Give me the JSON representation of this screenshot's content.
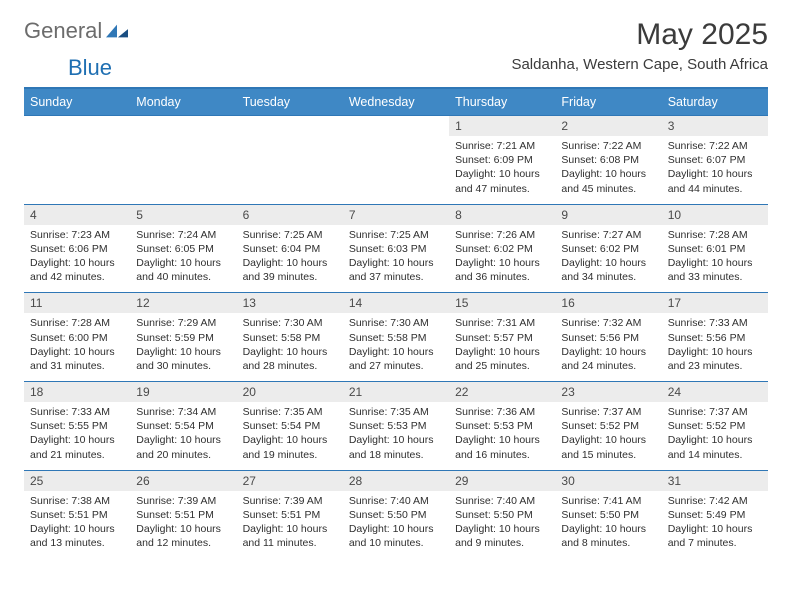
{
  "logo": {
    "text1": "General",
    "text2": "Blue"
  },
  "title": "May 2025",
  "location": "Saldanha, Western Cape, South Africa",
  "colors": {
    "header_bg": "#3f88c5",
    "header_text": "#ffffff",
    "daynum_bg": "#ececec",
    "rule": "#2f77b6",
    "logo_gray": "#6c6c6c",
    "logo_blue": "#1f6fb2"
  },
  "weekdays": [
    "Sunday",
    "Monday",
    "Tuesday",
    "Wednesday",
    "Thursday",
    "Friday",
    "Saturday"
  ],
  "weeks": [
    [
      {
        "n": "",
        "sr": "",
        "ss": "",
        "dl": ""
      },
      {
        "n": "",
        "sr": "",
        "ss": "",
        "dl": ""
      },
      {
        "n": "",
        "sr": "",
        "ss": "",
        "dl": ""
      },
      {
        "n": "",
        "sr": "",
        "ss": "",
        "dl": ""
      },
      {
        "n": "1",
        "sr": "Sunrise: 7:21 AM",
        "ss": "Sunset: 6:09 PM",
        "dl": "Daylight: 10 hours and 47 minutes."
      },
      {
        "n": "2",
        "sr": "Sunrise: 7:22 AM",
        "ss": "Sunset: 6:08 PM",
        "dl": "Daylight: 10 hours and 45 minutes."
      },
      {
        "n": "3",
        "sr": "Sunrise: 7:22 AM",
        "ss": "Sunset: 6:07 PM",
        "dl": "Daylight: 10 hours and 44 minutes."
      }
    ],
    [
      {
        "n": "4",
        "sr": "Sunrise: 7:23 AM",
        "ss": "Sunset: 6:06 PM",
        "dl": "Daylight: 10 hours and 42 minutes."
      },
      {
        "n": "5",
        "sr": "Sunrise: 7:24 AM",
        "ss": "Sunset: 6:05 PM",
        "dl": "Daylight: 10 hours and 40 minutes."
      },
      {
        "n": "6",
        "sr": "Sunrise: 7:25 AM",
        "ss": "Sunset: 6:04 PM",
        "dl": "Daylight: 10 hours and 39 minutes."
      },
      {
        "n": "7",
        "sr": "Sunrise: 7:25 AM",
        "ss": "Sunset: 6:03 PM",
        "dl": "Daylight: 10 hours and 37 minutes."
      },
      {
        "n": "8",
        "sr": "Sunrise: 7:26 AM",
        "ss": "Sunset: 6:02 PM",
        "dl": "Daylight: 10 hours and 36 minutes."
      },
      {
        "n": "9",
        "sr": "Sunrise: 7:27 AM",
        "ss": "Sunset: 6:02 PM",
        "dl": "Daylight: 10 hours and 34 minutes."
      },
      {
        "n": "10",
        "sr": "Sunrise: 7:28 AM",
        "ss": "Sunset: 6:01 PM",
        "dl": "Daylight: 10 hours and 33 minutes."
      }
    ],
    [
      {
        "n": "11",
        "sr": "Sunrise: 7:28 AM",
        "ss": "Sunset: 6:00 PM",
        "dl": "Daylight: 10 hours and 31 minutes."
      },
      {
        "n": "12",
        "sr": "Sunrise: 7:29 AM",
        "ss": "Sunset: 5:59 PM",
        "dl": "Daylight: 10 hours and 30 minutes."
      },
      {
        "n": "13",
        "sr": "Sunrise: 7:30 AM",
        "ss": "Sunset: 5:58 PM",
        "dl": "Daylight: 10 hours and 28 minutes."
      },
      {
        "n": "14",
        "sr": "Sunrise: 7:30 AM",
        "ss": "Sunset: 5:58 PM",
        "dl": "Daylight: 10 hours and 27 minutes."
      },
      {
        "n": "15",
        "sr": "Sunrise: 7:31 AM",
        "ss": "Sunset: 5:57 PM",
        "dl": "Daylight: 10 hours and 25 minutes."
      },
      {
        "n": "16",
        "sr": "Sunrise: 7:32 AM",
        "ss": "Sunset: 5:56 PM",
        "dl": "Daylight: 10 hours and 24 minutes."
      },
      {
        "n": "17",
        "sr": "Sunrise: 7:33 AM",
        "ss": "Sunset: 5:56 PM",
        "dl": "Daylight: 10 hours and 23 minutes."
      }
    ],
    [
      {
        "n": "18",
        "sr": "Sunrise: 7:33 AM",
        "ss": "Sunset: 5:55 PM",
        "dl": "Daylight: 10 hours and 21 minutes."
      },
      {
        "n": "19",
        "sr": "Sunrise: 7:34 AM",
        "ss": "Sunset: 5:54 PM",
        "dl": "Daylight: 10 hours and 20 minutes."
      },
      {
        "n": "20",
        "sr": "Sunrise: 7:35 AM",
        "ss": "Sunset: 5:54 PM",
        "dl": "Daylight: 10 hours and 19 minutes."
      },
      {
        "n": "21",
        "sr": "Sunrise: 7:35 AM",
        "ss": "Sunset: 5:53 PM",
        "dl": "Daylight: 10 hours and 18 minutes."
      },
      {
        "n": "22",
        "sr": "Sunrise: 7:36 AM",
        "ss": "Sunset: 5:53 PM",
        "dl": "Daylight: 10 hours and 16 minutes."
      },
      {
        "n": "23",
        "sr": "Sunrise: 7:37 AM",
        "ss": "Sunset: 5:52 PM",
        "dl": "Daylight: 10 hours and 15 minutes."
      },
      {
        "n": "24",
        "sr": "Sunrise: 7:37 AM",
        "ss": "Sunset: 5:52 PM",
        "dl": "Daylight: 10 hours and 14 minutes."
      }
    ],
    [
      {
        "n": "25",
        "sr": "Sunrise: 7:38 AM",
        "ss": "Sunset: 5:51 PM",
        "dl": "Daylight: 10 hours and 13 minutes."
      },
      {
        "n": "26",
        "sr": "Sunrise: 7:39 AM",
        "ss": "Sunset: 5:51 PM",
        "dl": "Daylight: 10 hours and 12 minutes."
      },
      {
        "n": "27",
        "sr": "Sunrise: 7:39 AM",
        "ss": "Sunset: 5:51 PM",
        "dl": "Daylight: 10 hours and 11 minutes."
      },
      {
        "n": "28",
        "sr": "Sunrise: 7:40 AM",
        "ss": "Sunset: 5:50 PM",
        "dl": "Daylight: 10 hours and 10 minutes."
      },
      {
        "n": "29",
        "sr": "Sunrise: 7:40 AM",
        "ss": "Sunset: 5:50 PM",
        "dl": "Daylight: 10 hours and 9 minutes."
      },
      {
        "n": "30",
        "sr": "Sunrise: 7:41 AM",
        "ss": "Sunset: 5:50 PM",
        "dl": "Daylight: 10 hours and 8 minutes."
      },
      {
        "n": "31",
        "sr": "Sunrise: 7:42 AM",
        "ss": "Sunset: 5:49 PM",
        "dl": "Daylight: 10 hours and 7 minutes."
      }
    ]
  ]
}
